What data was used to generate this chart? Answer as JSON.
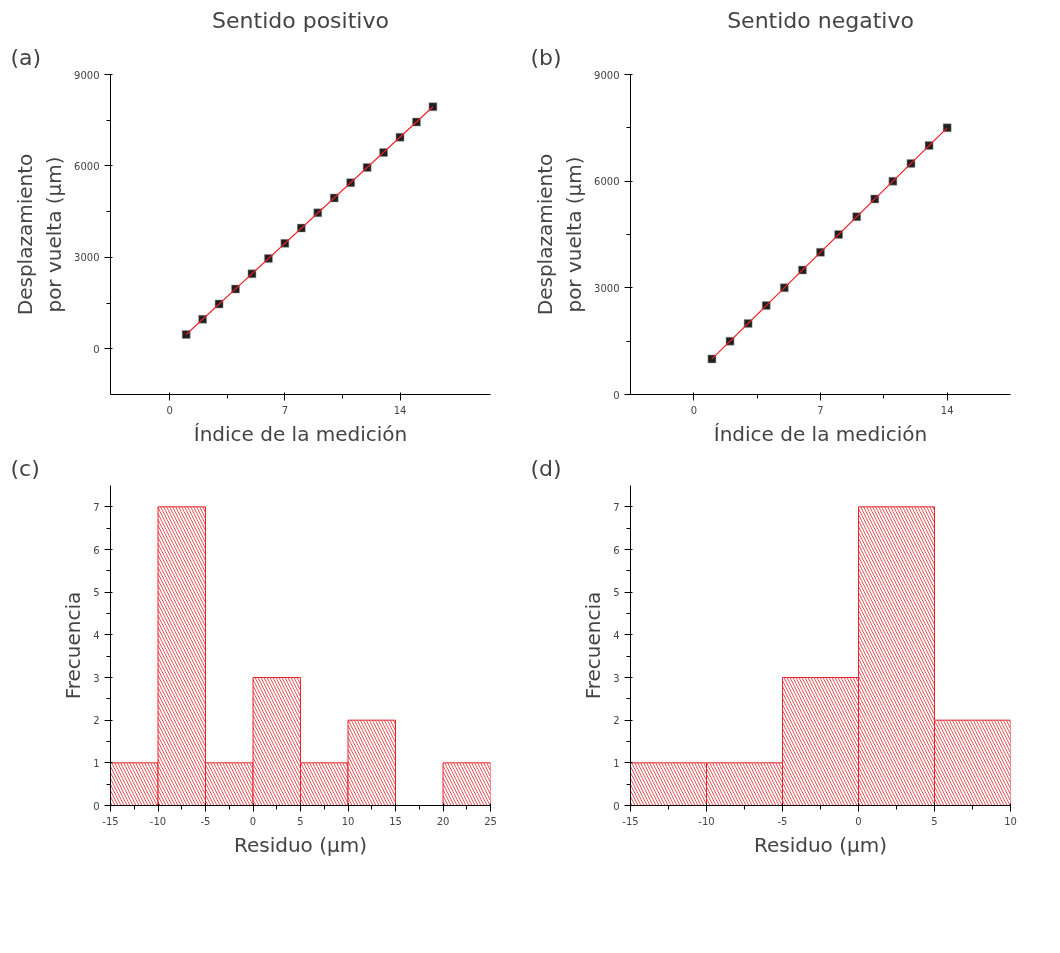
{
  "chart_data": [
    {
      "type": "scatter",
      "title": "Sentido positivo",
      "annotations": [
        "(a)"
      ],
      "xlabel": "Índice de la medición",
      "ylabel": "Desplazamiento\npor vuelta (µm)",
      "xlim": [
        -3.6,
        19.5
      ],
      "ylim": [
        -1500,
        9000
      ],
      "xticks": [
        0,
        7,
        14
      ],
      "yticks": [
        0,
        3000,
        6000,
        9000
      ],
      "grid": false,
      "series": [
        {
          "type": "scatter",
          "marker": "square",
          "color": "#231f20",
          "x": [
            1,
            2,
            3,
            4,
            5,
            6,
            7,
            8,
            9,
            10,
            11,
            12,
            13,
            14,
            15,
            16
          ],
          "values": [
            470,
            970,
            1470,
            1960,
            2460,
            2960,
            3460,
            3960,
            4460,
            4950,
            5450,
            5950,
            6440,
            6940,
            7440,
            7940
          ]
        },
        {
          "type": "line",
          "color": "#e8242a",
          "x": [
            1,
            16
          ],
          "values": [
            470,
            7940
          ]
        }
      ]
    },
    {
      "type": "scatter",
      "title": "Sentido negativo",
      "annotations": [
        "(b)"
      ],
      "xlabel": "Índice de la medición",
      "ylabel": "Desplazamiento\npor vuelta (µm)",
      "xlim": [
        -3.5,
        17.5
      ],
      "ylim": [
        0,
        9000
      ],
      "xticks": [
        0,
        7,
        14
      ],
      "yticks": [
        0,
        3000,
        6000,
        9000
      ],
      "grid": false,
      "series": [
        {
          "type": "scatter",
          "marker": "square",
          "color": "#231f20",
          "x": [
            1,
            2,
            3,
            4,
            5,
            6,
            7,
            8,
            9,
            10,
            11,
            12,
            13,
            14
          ],
          "values": [
            1000,
            1500,
            2000,
            2500,
            3000,
            3500,
            4000,
            4500,
            5000,
            5500,
            6000,
            6500,
            7000,
            7500
          ]
        },
        {
          "type": "line",
          "color": "#e8242a",
          "x": [
            1,
            14
          ],
          "values": [
            1000,
            7500
          ]
        }
      ]
    },
    {
      "type": "histogram",
      "annotations": [
        "(c)"
      ],
      "xlabel": "Residuo (µm)",
      "ylabel": "Frecuencia",
      "bins": [
        -15,
        -10,
        -5,
        0,
        5,
        10,
        15,
        20,
        25
      ],
      "values": [
        1,
        7,
        1,
        3,
        1,
        2,
        0,
        1
      ],
      "color": "#e8242a",
      "xlim": [
        -15,
        25
      ],
      "ylim": [
        0,
        7.5
      ],
      "xticks": [
        -15,
        -10,
        -5,
        0,
        5,
        10,
        15,
        20,
        25
      ],
      "yticks": [
        0,
        1,
        2,
        3,
        4,
        5,
        6,
        7
      ],
      "grid": false
    },
    {
      "type": "histogram",
      "annotations": [
        "(d)"
      ],
      "xlabel": "Residuo (µm)",
      "ylabel": "Frecuencia",
      "bins": [
        -15,
        -10,
        -5,
        0,
        5,
        10
      ],
      "values": [
        1,
        1,
        3,
        7,
        2
      ],
      "color": "#e8242a",
      "xlim": [
        -15,
        10
      ],
      "ylim": [
        0,
        7.5
      ],
      "xticks": [
        -15,
        -10,
        -5,
        0,
        5,
        10
      ],
      "yticks": [
        0,
        1,
        2,
        3,
        4,
        5,
        6,
        7
      ],
      "grid": false
    }
  ]
}
